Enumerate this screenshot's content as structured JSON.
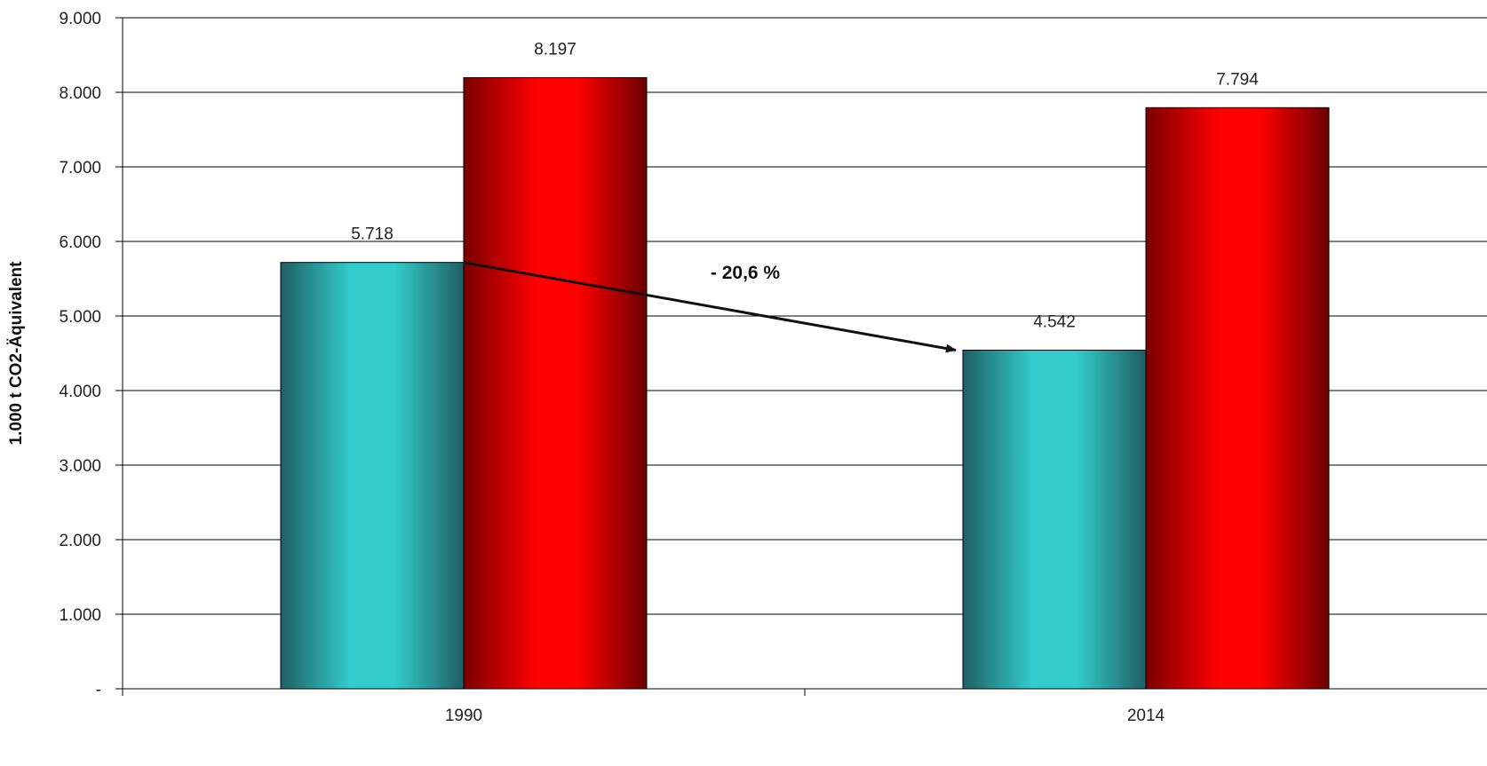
{
  "chart_data": {
    "type": "bar",
    "title": "",
    "xlabel": "",
    "ylabel": "1.000 t CO2-Äquivalent",
    "categories": [
      "1990",
      "2014"
    ],
    "series": [
      {
        "values": [
          5718,
          4542
        ],
        "data_labels": [
          "5.718",
          "4.542"
        ],
        "color": "#33cccc"
      },
      {
        "values": [
          8197,
          7794
        ],
        "data_labels": [
          "8.197",
          "7.794"
        ],
        "color": "#ff0000"
      }
    ],
    "ylim": [
      0,
      9000
    ],
    "y_ticks": [
      0,
      1000,
      2000,
      3000,
      4000,
      5000,
      6000,
      7000,
      8000,
      9000
    ],
    "y_tick_labels": [
      "-",
      "1.000",
      "2.000",
      "3.000",
      "4.000",
      "5.000",
      "6.000",
      "7.000",
      "8.000",
      "9.000"
    ],
    "grid": true,
    "legend": "none",
    "annotation": {
      "text": "- 20,6 %",
      "from": {
        "category": "1990",
        "value": 5718
      },
      "to": {
        "category": "2014",
        "value": 4542
      }
    }
  }
}
